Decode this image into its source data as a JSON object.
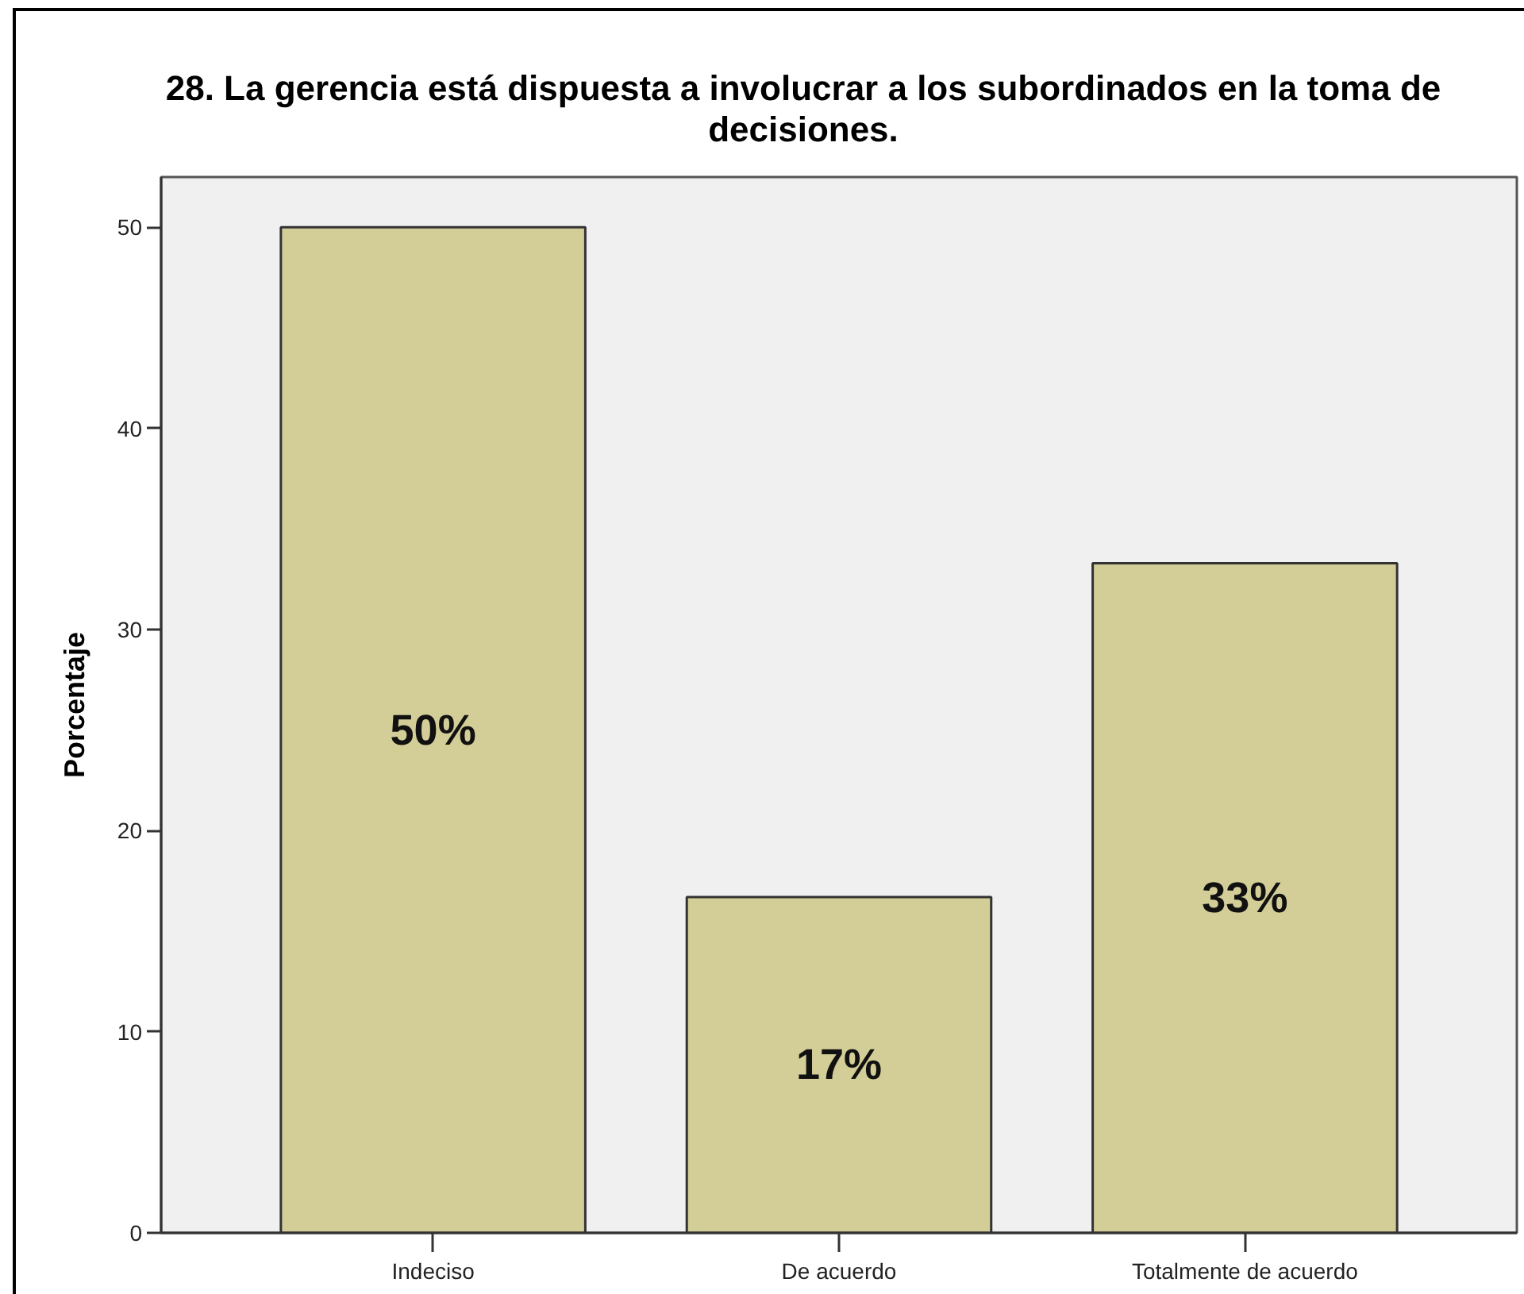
{
  "chart_data": {
    "type": "bar",
    "title": "28. La gerencia está dispuesta a involucrar a los subordinados en la toma de decisiones.",
    "ylabel": "Porcentaje",
    "categories": [
      "Indeciso",
      "De acuerdo",
      "Totalmente de acuerdo"
    ],
    "values": [
      50,
      16.7,
      33.3
    ],
    "value_labels": [
      "50%",
      "17%",
      "33%"
    ],
    "color": "#d3ce97",
    "ylim": [
      0,
      52.5
    ],
    "yticks": [
      0,
      10,
      20,
      30,
      40,
      50
    ]
  }
}
